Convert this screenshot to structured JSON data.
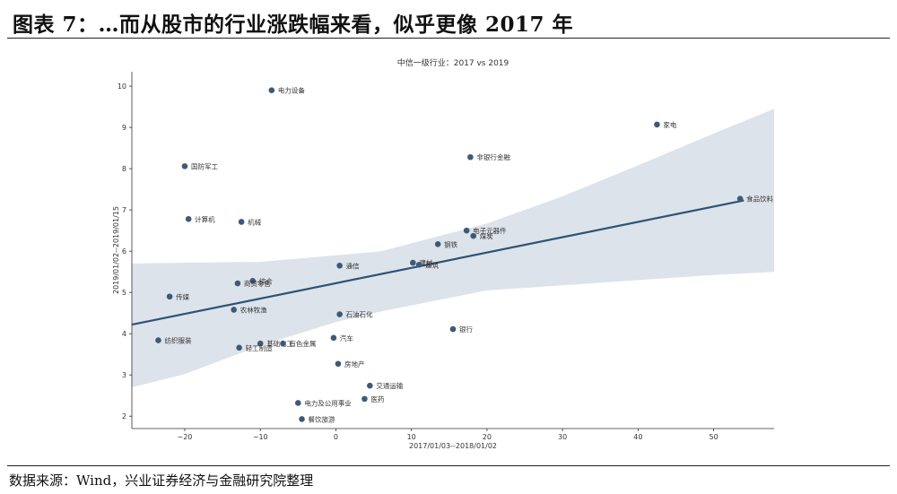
{
  "header": {
    "title": "图表 7：…而从股市的行业涨跌幅来看，似乎更像 2017 年"
  },
  "footer": {
    "source": "数据来源：Wind，兴业证券经济与金融研究院整理"
  },
  "colors": {
    "point": "#3d5a78",
    "line": "#2f5275",
    "band": "#dde3ea",
    "axis": "#333333"
  },
  "chart_data": {
    "type": "scatter",
    "title": "中信一级行业：2017 vs 2019",
    "xlabel": "2017/01/03--2018/01/02",
    "ylabel": "2019/01/02--2019/01/15",
    "xlim": [
      -27,
      58
    ],
    "ylim": [
      1.7,
      10.35
    ],
    "xticks": [
      -20,
      -10,
      0,
      10,
      20,
      30,
      40,
      50
    ],
    "yticks": [
      2,
      3,
      4,
      5,
      6,
      7,
      8,
      9,
      10
    ],
    "grid": false,
    "points": [
      {
        "label": "电力设备",
        "x": -8.5,
        "y": 9.9
      },
      {
        "label": "家电",
        "x": 42.5,
        "y": 9.07
      },
      {
        "label": "非银行金融",
        "x": 17.8,
        "y": 8.28
      },
      {
        "label": "国防军工",
        "x": -20,
        "y": 8.06
      },
      {
        "label": "食品饮料",
        "x": 53.5,
        "y": 7.27
      },
      {
        "label": "计算机",
        "x": -19.5,
        "y": 6.78
      },
      {
        "label": "机械",
        "x": -12.5,
        "y": 6.71
      },
      {
        "label": "电子元器件",
        "x": 17.3,
        "y": 6.5
      },
      {
        "label": "煤炭",
        "x": 18.2,
        "y": 6.37
      },
      {
        "label": "钢铁",
        "x": 13.5,
        "y": 6.17
      },
      {
        "label": "通信",
        "x": 0.5,
        "y": 5.65
      },
      {
        "label": "建材",
        "x": 10.2,
        "y": 5.72
      },
      {
        "label": "建筑",
        "x": 11,
        "y": 5.67
      },
      {
        "label": "综合",
        "x": -11,
        "y": 5.28
      },
      {
        "label": "商贸零售",
        "x": -13,
        "y": 5.22
      },
      {
        "label": "传媒",
        "x": -22,
        "y": 4.9
      },
      {
        "label": "农林牧渔",
        "x": -13.5,
        "y": 4.58
      },
      {
        "label": "石油石化",
        "x": 0.5,
        "y": 4.47
      },
      {
        "label": "银行",
        "x": 15.5,
        "y": 4.11
      },
      {
        "label": "纺织服装",
        "x": -23.5,
        "y": 3.84
      },
      {
        "label": "汽车",
        "x": -0.3,
        "y": 3.9
      },
      {
        "label": "基础化工",
        "x": -10,
        "y": 3.76
      },
      {
        "label": "有色金属",
        "x": -7,
        "y": 3.76
      },
      {
        "label": "轻工制造",
        "x": -12.8,
        "y": 3.66
      },
      {
        "label": "房地产",
        "x": 0.3,
        "y": 3.27
      },
      {
        "label": "交通运输",
        "x": 4.5,
        "y": 2.74
      },
      {
        "label": "医药",
        "x": 3.8,
        "y": 2.42
      },
      {
        "label": "电力及公用事业",
        "x": -5,
        "y": 2.32
      },
      {
        "label": "餐饮旅游",
        "x": -4.5,
        "y": 1.93
      }
    ],
    "regression": {
      "x": [
        -27,
        54
      ],
      "y": [
        4.22,
        7.23
      ]
    },
    "confidence_band": {
      "x": [
        -27,
        -20,
        -10,
        0,
        6,
        20,
        30,
        40,
        50,
        58
      ],
      "upper": [
        5.7,
        5.72,
        5.74,
        5.9,
        6.0,
        6.67,
        7.33,
        8.08,
        8.85,
        9.45
      ],
      "lower": [
        2.7,
        3.02,
        3.71,
        4.28,
        4.54,
        5.05,
        5.17,
        5.3,
        5.42,
        5.5
      ]
    }
  }
}
